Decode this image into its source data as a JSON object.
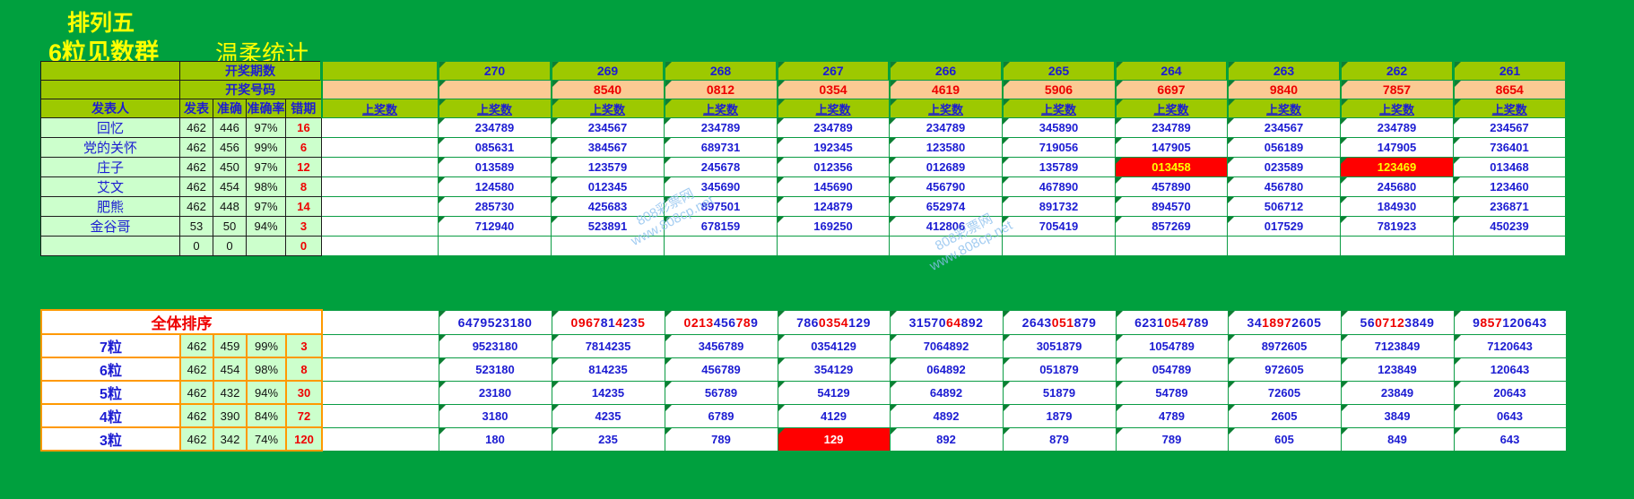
{
  "titles": {
    "game": "排列五",
    "group": "6粒见数群",
    "stat": "温柔统计"
  },
  "watermark": {
    "line1": "808彩票网",
    "line2": "www.808cp.net"
  },
  "colors": {
    "page_bg": "#00A03E",
    "header_green": "#9DC900",
    "light_green": "#CCFFCC",
    "peach": "#FBCA93",
    "text_blue": "#1C1CD2",
    "text_red": "#EE0000",
    "grid_green": "#0B9C44",
    "orange_border": "#FF9900",
    "alert_cell_bg": "#FF0000",
    "alert_cell_text": "#FFFF00",
    "title_yellow": "#FFFF00",
    "watermark_blue": "#8CC0EE"
  },
  "top_table": {
    "period_row_label": "开奖期数",
    "number_row_label": "开奖号码",
    "publisher_label": "发表人",
    "stat_labels": [
      "发表",
      "准确",
      "准确率",
      "错期"
    ],
    "hits_label": "上奖数",
    "periods": [
      "270",
      "269",
      "268",
      "267",
      "266",
      "265",
      "264",
      "263",
      "262",
      "261"
    ],
    "draw_numbers": [
      "",
      "8540",
      "0812",
      "0354",
      "4619",
      "5906",
      "6697",
      "9840",
      "7857",
      "8654"
    ],
    "rows": [
      {
        "name": "回忆",
        "stats": [
          "462",
          "446",
          "97%",
          "16"
        ],
        "values": [
          "234789",
          "234567",
          "234789",
          "234789",
          "234789",
          "345890",
          "234789",
          "234567",
          "234789",
          "234567"
        ],
        "red_cells": []
      },
      {
        "name": "党的关怀",
        "stats": [
          "462",
          "456",
          "99%",
          "6"
        ],
        "values": [
          "085631",
          "384567",
          "689731",
          "192345",
          "123580",
          "719056",
          "147905",
          "056189",
          "147905",
          "736401"
        ],
        "red_cells": []
      },
      {
        "name": "庄子",
        "stats": [
          "462",
          "450",
          "97%",
          "12"
        ],
        "values": [
          "013589",
          "123579",
          "245678",
          "012356",
          "012689",
          "135789",
          "013458",
          "023589",
          "123469",
          "013468"
        ],
        "red_cells": [
          6,
          8
        ]
      },
      {
        "name": "艾文",
        "stats": [
          "462",
          "454",
          "98%",
          "8"
        ],
        "values": [
          "124580",
          "012345",
          "345690",
          "145690",
          "456790",
          "467890",
          "457890",
          "456780",
          "245680",
          "123460"
        ],
        "red_cells": []
      },
      {
        "name": "肥熊",
        "stats": [
          "462",
          "448",
          "97%",
          "14"
        ],
        "values": [
          "285730",
          "425683",
          "897501",
          "124879",
          "652974",
          "891732",
          "894570",
          "506712",
          "184930",
          "236871"
        ],
        "red_cells": []
      },
      {
        "name": "金谷哥",
        "stats": [
          "53",
          "50",
          "94%",
          "3"
        ],
        "values": [
          "712940",
          "523891",
          "678159",
          "169250",
          "412806",
          "705419",
          "857269",
          "017529",
          "781923",
          "450239"
        ],
        "red_cells": []
      },
      {
        "name": "",
        "stats": [
          "0",
          "0",
          "",
          "0"
        ],
        "values": [
          "",
          "",
          "",
          "",
          "",
          "",
          "",
          "",
          "",
          ""
        ],
        "red_cells": []
      }
    ]
  },
  "bottom_table": {
    "title": "全体排序",
    "sequences": [
      [
        {
          "text": "6479523180",
          "color": "blue"
        }
      ],
      [
        {
          "text": "0967",
          "color": "red"
        },
        {
          "text": "81",
          "color": "blue"
        },
        {
          "text": "4",
          "color": "red"
        },
        {
          "text": "23",
          "color": "blue"
        },
        {
          "text": "5",
          "color": "red"
        }
      ],
      [
        {
          "text": "0213",
          "color": "red"
        },
        {
          "text": "456",
          "color": "blue"
        },
        {
          "text": "78",
          "color": "red"
        },
        {
          "text": "9",
          "color": "blue"
        }
      ],
      [
        {
          "text": "786",
          "color": "blue"
        },
        {
          "text": "0354",
          "color": "red"
        },
        {
          "text": "129",
          "color": "blue"
        }
      ],
      [
        {
          "text": "31570",
          "color": "blue"
        },
        {
          "text": "64",
          "color": "red"
        },
        {
          "text": "892",
          "color": "blue"
        }
      ],
      [
        {
          "text": "2643",
          "color": "blue"
        },
        {
          "text": "051",
          "color": "red"
        },
        {
          "text": "879",
          "color": "blue"
        }
      ],
      [
        {
          "text": "6231",
          "color": "blue"
        },
        {
          "text": "054",
          "color": "red"
        },
        {
          "text": "789",
          "color": "blue"
        }
      ],
      [
        {
          "text": "34",
          "color": "blue"
        },
        {
          "text": "1897",
          "color": "red"
        },
        {
          "text": "2605",
          "color": "blue"
        }
      ],
      [
        {
          "text": "56",
          "color": "blue"
        },
        {
          "text": "0712",
          "color": "red"
        },
        {
          "text": "3849",
          "color": "blue"
        }
      ],
      [
        {
          "text": "9",
          "color": "blue"
        },
        {
          "text": "857",
          "color": "red"
        },
        {
          "text": "120643",
          "color": "blue"
        }
      ]
    ],
    "rows": [
      {
        "label": "7粒",
        "stats": [
          "462",
          "459",
          "99%",
          "3"
        ],
        "values": [
          "9523180",
          "7814235",
          "3456789",
          "0354129",
          "7064892",
          "3051879",
          "1054789",
          "8972605",
          "7123849",
          "7120643"
        ],
        "red_cells": []
      },
      {
        "label": "6粒",
        "stats": [
          "462",
          "454",
          "98%",
          "8"
        ],
        "values": [
          "523180",
          "814235",
          "456789",
          "354129",
          "064892",
          "051879",
          "054789",
          "972605",
          "123849",
          "120643"
        ],
        "red_cells": []
      },
      {
        "label": "5粒",
        "stats": [
          "462",
          "432",
          "94%",
          "30"
        ],
        "values": [
          "23180",
          "14235",
          "56789",
          "54129",
          "64892",
          "51879",
          "54789",
          "72605",
          "23849",
          "20643"
        ],
        "red_cells": []
      },
      {
        "label": "4粒",
        "stats": [
          "462",
          "390",
          "84%",
          "72"
        ],
        "values": [
          "3180",
          "4235",
          "6789",
          "4129",
          "4892",
          "1879",
          "4789",
          "2605",
          "3849",
          "0643"
        ],
        "red_cells": []
      },
      {
        "label": "3粒",
        "stats": [
          "462",
          "342",
          "74%",
          "120"
        ],
        "values": [
          "180",
          "235",
          "789",
          "129",
          "892",
          "879",
          "789",
          "605",
          "849",
          "643"
        ],
        "red_cells": [
          3
        ]
      }
    ]
  }
}
